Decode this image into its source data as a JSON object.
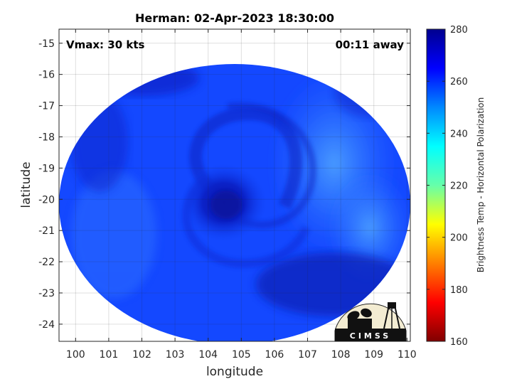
{
  "chart_data": {
    "type": "heatmap",
    "title": "Herman: 02-Apr-2023 18:30:00",
    "xlabel": "longitude",
    "ylabel": "latitude",
    "xlim": [
      99.5,
      110.1
    ],
    "ylim": [
      -24.55,
      -14.55
    ],
    "x_ticks": [
      "100",
      "101",
      "102",
      "103",
      "104",
      "105",
      "106",
      "107",
      "108",
      "109",
      "110"
    ],
    "y_ticks": [
      "-15",
      "-16",
      "-17",
      "-18",
      "-19",
      "-20",
      "-21",
      "-22",
      "-23",
      "-24"
    ],
    "grid": true,
    "annotations": {
      "left": "Vmax: 30 kts",
      "right": "00:11 away"
    },
    "storm_center": {
      "lon": 104.5,
      "lat": -20.0
    },
    "colorbar": {
      "label": "Brightness Temp - Horizontal Polarization",
      "range": [
        160,
        280
      ],
      "ticks": [
        "280",
        "260",
        "240",
        "220",
        "200",
        "180",
        "160"
      ],
      "colormap": "jet"
    },
    "logo": "CIMSS"
  },
  "colors": {
    "cold": "#0a1fd0",
    "mid": "#1348ff",
    "warm": "#3a8dff"
  }
}
